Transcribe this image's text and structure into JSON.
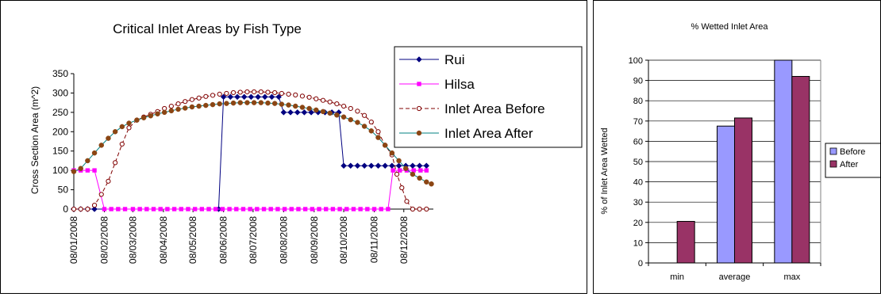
{
  "chart_data": [
    {
      "type": "line",
      "title": "Critical Inlet Areas by Fish Type",
      "ylabel": "Cross Section Area (m^2)",
      "xlabel": "",
      "ylim": [
        0,
        350
      ],
      "yticks": [
        "0",
        "50",
        "100",
        "150",
        "200",
        "250",
        "300",
        "350"
      ],
      "xlim": [
        "2008-01-01",
        "2008-12-31"
      ],
      "xticks": [
        {
          "date": "2008-01-01",
          "label": "08/01/2008"
        },
        {
          "date": "2008-02-01",
          "label": "08/02/2008"
        },
        {
          "date": "2008-03-01",
          "label": "08/03/2008"
        },
        {
          "date": "2008-04-01",
          "label": "08/04/2008"
        },
        {
          "date": "2008-05-01",
          "label": "08/05/2008"
        },
        {
          "date": "2008-06-01",
          "label": "08/06/2008"
        },
        {
          "date": "2008-07-01",
          "label": "08/07/2008"
        },
        {
          "date": "2008-08-01",
          "label": "08/08/2008"
        },
        {
          "date": "2008-09-01",
          "label": "08/09/2008"
        },
        {
          "date": "2008-10-01",
          "label": "08/10/2008"
        },
        {
          "date": "2008-11-01",
          "label": "08/11/2008"
        },
        {
          "date": "2008-12-01",
          "label": "08/12/2008"
        }
      ],
      "grid": false,
      "legend": "top-right",
      "series": [
        {
          "name": "Rui",
          "color": "#000080",
          "marker": "diamond",
          "points": [
            [
              "2008-01-01",
              0
            ],
            [
              "2008-01-08",
              0
            ],
            [
              "2008-01-15",
              0
            ],
            [
              "2008-01-22",
              0
            ],
            [
              "2008-05-27",
              0
            ],
            [
              "2008-06-01",
              290
            ],
            [
              "2008-06-08",
              290
            ],
            [
              "2008-06-15",
              290
            ],
            [
              "2008-06-22",
              290
            ],
            [
              "2008-06-29",
              290
            ],
            [
              "2008-07-06",
              290
            ],
            [
              "2008-07-13",
              290
            ],
            [
              "2008-07-20",
              290
            ],
            [
              "2008-07-27",
              290
            ],
            [
              "2008-08-01",
              250
            ],
            [
              "2008-08-08",
              250
            ],
            [
              "2008-08-15",
              250
            ],
            [
              "2008-08-22",
              250
            ],
            [
              "2008-08-29",
              250
            ],
            [
              "2008-09-05",
              250
            ],
            [
              "2008-09-12",
              250
            ],
            [
              "2008-09-19",
              250
            ],
            [
              "2008-09-26",
              250
            ],
            [
              "2008-10-01",
              112
            ],
            [
              "2008-10-08",
              112
            ],
            [
              "2008-10-15",
              112
            ],
            [
              "2008-10-22",
              112
            ],
            [
              "2008-10-29",
              112
            ],
            [
              "2008-11-05",
              112
            ],
            [
              "2008-11-12",
              112
            ],
            [
              "2008-11-19",
              112
            ],
            [
              "2008-11-26",
              112
            ],
            [
              "2008-12-03",
              112
            ],
            [
              "2008-12-10",
              112
            ],
            [
              "2008-12-17",
              112
            ],
            [
              "2008-12-24",
              112
            ]
          ]
        },
        {
          "name": "Hilsa",
          "color": "#ff00ff",
          "marker": "square",
          "points": [
            [
              "2008-01-01",
              100
            ],
            [
              "2008-01-08",
              100
            ],
            [
              "2008-01-15",
              100
            ],
            [
              "2008-01-22",
              100
            ],
            [
              "2008-02-01",
              0
            ],
            [
              "2008-02-08",
              0
            ],
            [
              "2008-02-15",
              0
            ],
            [
              "2008-02-22",
              0
            ],
            [
              "2008-03-01",
              0
            ],
            [
              "2008-03-08",
              0
            ],
            [
              "2008-03-15",
              0
            ],
            [
              "2008-03-22",
              0
            ],
            [
              "2008-03-29",
              0
            ],
            [
              "2008-04-05",
              0
            ],
            [
              "2008-04-12",
              0
            ],
            [
              "2008-04-19",
              0
            ],
            [
              "2008-04-26",
              0
            ],
            [
              "2008-05-03",
              0
            ],
            [
              "2008-05-10",
              0
            ],
            [
              "2008-05-17",
              0
            ],
            [
              "2008-05-24",
              0
            ],
            [
              "2008-05-31",
              0
            ],
            [
              "2008-06-07",
              0
            ],
            [
              "2008-06-14",
              0
            ],
            [
              "2008-06-21",
              0
            ],
            [
              "2008-06-28",
              0
            ],
            [
              "2008-07-05",
              0
            ],
            [
              "2008-07-12",
              0
            ],
            [
              "2008-07-19",
              0
            ],
            [
              "2008-07-26",
              0
            ],
            [
              "2008-08-02",
              0
            ],
            [
              "2008-08-09",
              0
            ],
            [
              "2008-08-16",
              0
            ],
            [
              "2008-08-23",
              0
            ],
            [
              "2008-08-30",
              0
            ],
            [
              "2008-09-06",
              0
            ],
            [
              "2008-09-13",
              0
            ],
            [
              "2008-09-20",
              0
            ],
            [
              "2008-09-27",
              0
            ],
            [
              "2008-10-04",
              0
            ],
            [
              "2008-10-11",
              0
            ],
            [
              "2008-10-18",
              0
            ],
            [
              "2008-10-25",
              0
            ],
            [
              "2008-11-01",
              0
            ],
            [
              "2008-11-08",
              0
            ],
            [
              "2008-11-15",
              0
            ],
            [
              "2008-11-20",
              100
            ],
            [
              "2008-11-27",
              100
            ],
            [
              "2008-12-04",
              100
            ],
            [
              "2008-12-11",
              100
            ],
            [
              "2008-12-18",
              100
            ],
            [
              "2008-12-24",
              100
            ]
          ]
        },
        {
          "name": "Inlet Area Before",
          "color": "#800000",
          "marker": "circle-open",
          "dash": true,
          "points": [
            [
              "2008-01-01",
              0
            ],
            [
              "2008-01-08",
              0
            ],
            [
              "2008-01-15",
              0
            ],
            [
              "2008-01-22",
              10
            ],
            [
              "2008-01-29",
              38
            ],
            [
              "2008-02-05",
              72
            ],
            [
              "2008-02-12",
              120
            ],
            [
              "2008-02-19",
              168
            ],
            [
              "2008-02-26",
              210
            ],
            [
              "2008-03-05",
              230
            ],
            [
              "2008-03-12",
              238
            ],
            [
              "2008-03-19",
              245
            ],
            [
              "2008-03-26",
              252
            ],
            [
              "2008-04-02",
              260
            ],
            [
              "2008-04-09",
              266
            ],
            [
              "2008-04-16",
              272
            ],
            [
              "2008-04-23",
              278
            ],
            [
              "2008-04-30",
              283
            ],
            [
              "2008-05-07",
              287
            ],
            [
              "2008-05-14",
              291
            ],
            [
              "2008-05-21",
              294
            ],
            [
              "2008-05-28",
              297
            ],
            [
              "2008-06-04",
              299
            ],
            [
              "2008-06-11",
              301
            ],
            [
              "2008-06-18",
              302
            ],
            [
              "2008-06-25",
              303
            ],
            [
              "2008-07-02",
              303
            ],
            [
              "2008-07-09",
              303
            ],
            [
              "2008-07-16",
              302
            ],
            [
              "2008-07-23",
              301
            ],
            [
              "2008-07-30",
              299
            ],
            [
              "2008-08-06",
              297
            ],
            [
              "2008-08-13",
              295
            ],
            [
              "2008-08-20",
              292
            ],
            [
              "2008-08-27",
              289
            ],
            [
              "2008-09-03",
              285
            ],
            [
              "2008-09-10",
              281
            ],
            [
              "2008-09-17",
              277
            ],
            [
              "2008-09-24",
              272
            ],
            [
              "2008-10-01",
              266
            ],
            [
              "2008-10-08",
              260
            ],
            [
              "2008-10-15",
              253
            ],
            [
              "2008-10-22",
              242
            ],
            [
              "2008-10-29",
              225
            ],
            [
              "2008-11-05",
              200
            ],
            [
              "2008-11-12",
              165
            ],
            [
              "2008-11-19",
              140
            ],
            [
              "2008-11-24",
              90
            ],
            [
              "2008-11-29",
              55
            ],
            [
              "2008-12-04",
              20
            ],
            [
              "2008-12-10",
              0
            ],
            [
              "2008-12-17",
              0
            ],
            [
              "2008-12-24",
              0
            ]
          ]
        },
        {
          "name": "Inlet Area After",
          "color": "#008080",
          "marker": "circle-filled",
          "marker_color": "#8b4513",
          "points": [
            [
              "2008-01-01",
              97
            ],
            [
              "2008-01-08",
              105
            ],
            [
              "2008-01-15",
              125
            ],
            [
              "2008-01-22",
              145
            ],
            [
              "2008-01-29",
              165
            ],
            [
              "2008-02-05",
              183
            ],
            [
              "2008-02-12",
              200
            ],
            [
              "2008-02-19",
              213
            ],
            [
              "2008-02-26",
              222
            ],
            [
              "2008-03-05",
              230
            ],
            [
              "2008-03-12",
              236
            ],
            [
              "2008-03-19",
              241
            ],
            [
              "2008-03-26",
              246
            ],
            [
              "2008-04-02",
              250
            ],
            [
              "2008-04-09",
              254
            ],
            [
              "2008-04-16",
              258
            ],
            [
              "2008-04-23",
              261
            ],
            [
              "2008-04-30",
              264
            ],
            [
              "2008-05-07",
              266
            ],
            [
              "2008-05-14",
              268
            ],
            [
              "2008-05-21",
              270
            ],
            [
              "2008-05-28",
              272
            ],
            [
              "2008-06-04",
              273
            ],
            [
              "2008-06-11",
              274
            ],
            [
              "2008-06-18",
              275
            ],
            [
              "2008-06-25",
              275
            ],
            [
              "2008-07-02",
              275
            ],
            [
              "2008-07-09",
              275
            ],
            [
              "2008-07-16",
              274
            ],
            [
              "2008-07-23",
              273
            ],
            [
              "2008-07-30",
              271
            ],
            [
              "2008-08-06",
              269
            ],
            [
              "2008-08-13",
              266
            ],
            [
              "2008-08-20",
              263
            ],
            [
              "2008-08-27",
              260
            ],
            [
              "2008-09-03",
              256
            ],
            [
              "2008-09-10",
              252
            ],
            [
              "2008-09-17",
              248
            ],
            [
              "2008-09-24",
              243
            ],
            [
              "2008-10-01",
              238
            ],
            [
              "2008-10-08",
              231
            ],
            [
              "2008-10-15",
              224
            ],
            [
              "2008-10-22",
              214
            ],
            [
              "2008-10-29",
              202
            ],
            [
              "2008-11-05",
              185
            ],
            [
              "2008-11-12",
              165
            ],
            [
              "2008-11-19",
              145
            ],
            [
              "2008-11-26",
              125
            ],
            [
              "2008-12-03",
              105
            ],
            [
              "2008-12-10",
              90
            ],
            [
              "2008-12-17",
              80
            ],
            [
              "2008-12-24",
              70
            ],
            [
              "2008-12-29",
              65
            ]
          ]
        }
      ]
    },
    {
      "type": "bar",
      "title": "% Wetted Inlet Area",
      "ylabel": "% of Inlet Area Wetted",
      "xlabel": "",
      "categories": [
        "min",
        "average",
        "max"
      ],
      "ylim": [
        0,
        100
      ],
      "yticks": [
        "0",
        "10",
        "20",
        "30",
        "40",
        "50",
        "60",
        "70",
        "80",
        "90",
        "100"
      ],
      "grid": true,
      "legend": "right",
      "series": [
        {
          "name": "Before",
          "color": "#9999ff",
          "values": [
            0,
            67.5,
            100
          ]
        },
        {
          "name": "After",
          "color": "#993366",
          "values": [
            20.5,
            71.5,
            92
          ]
        }
      ]
    }
  ]
}
